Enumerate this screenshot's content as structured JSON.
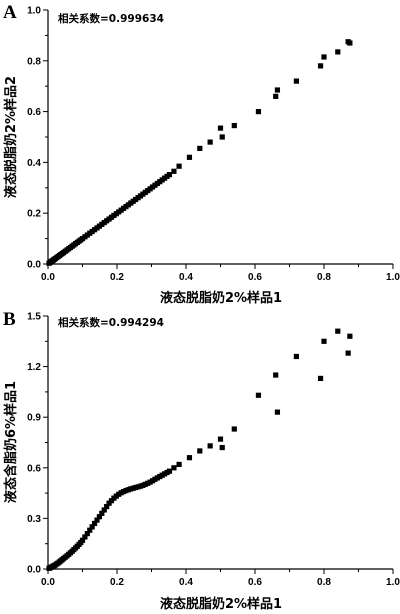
{
  "chart_data": [
    {
      "type": "scatter",
      "panel": "A",
      "annotation": "相关系数=0.999634",
      "xlabel": "液态脱脂奶2%样品1",
      "ylabel": "液态脱脂奶2%样品2",
      "xlim": [
        0,
        1.0
      ],
      "ylim": [
        0,
        1.0
      ],
      "xticks": [
        "0.0",
        "0.2",
        "0.4",
        "0.6",
        "0.8",
        "1.0"
      ],
      "yticks": [
        "0.0",
        "0.2",
        "0.4",
        "0.6",
        "0.8",
        "1.0"
      ],
      "series": [
        {
          "x": [
            0.003,
            0.006,
            0.009,
            0.012,
            0.015,
            0.018,
            0.021,
            0.025,
            0.029,
            0.033,
            0.037,
            0.041,
            0.045,
            0.05,
            0.055,
            0.06,
            0.065,
            0.07,
            0.075,
            0.08,
            0.085,
            0.09,
            0.095,
            0.1,
            0.107,
            0.114,
            0.121,
            0.128,
            0.135,
            0.142,
            0.149,
            0.156,
            0.163,
            0.17,
            0.177,
            0.184,
            0.191,
            0.198,
            0.205,
            0.212,
            0.219,
            0.226,
            0.233,
            0.24,
            0.247,
            0.254,
            0.261,
            0.268,
            0.275,
            0.282,
            0.289,
            0.296,
            0.303,
            0.31,
            0.317,
            0.324,
            0.331,
            0.338,
            0.345,
            0.352,
            0.365,
            0.38,
            0.41,
            0.44,
            0.47,
            0.5,
            0.505,
            0.54,
            0.61,
            0.66,
            0.665,
            0.72,
            0.79,
            0.8,
            0.84,
            0.87,
            0.875
          ],
          "y": [
            0.003,
            0.006,
            0.009,
            0.012,
            0.015,
            0.018,
            0.021,
            0.025,
            0.029,
            0.033,
            0.037,
            0.041,
            0.045,
            0.05,
            0.055,
            0.06,
            0.065,
            0.07,
            0.075,
            0.08,
            0.085,
            0.09,
            0.095,
            0.1,
            0.107,
            0.114,
            0.121,
            0.128,
            0.135,
            0.142,
            0.149,
            0.156,
            0.163,
            0.17,
            0.177,
            0.184,
            0.191,
            0.198,
            0.205,
            0.212,
            0.219,
            0.226,
            0.233,
            0.24,
            0.247,
            0.254,
            0.261,
            0.268,
            0.275,
            0.282,
            0.289,
            0.296,
            0.303,
            0.31,
            0.317,
            0.324,
            0.331,
            0.338,
            0.345,
            0.352,
            0.365,
            0.385,
            0.42,
            0.455,
            0.48,
            0.535,
            0.5,
            0.545,
            0.6,
            0.66,
            0.685,
            0.72,
            0.78,
            0.815,
            0.835,
            0.875,
            0.87
          ]
        }
      ]
    },
    {
      "type": "scatter",
      "panel": "B",
      "annotation": "相关系数=0.994294",
      "xlabel": "液态脱脂奶2%样品1",
      "ylabel": "液态含脂奶6%样品1",
      "xlim": [
        0,
        1.0
      ],
      "ylim": [
        0,
        1.5
      ],
      "xticks": [
        "0.0",
        "0.2",
        "0.4",
        "0.6",
        "0.8",
        "1.0"
      ],
      "yticks": [
        "0.0",
        "0.3",
        "0.6",
        "0.9",
        "1.2",
        "1.5"
      ],
      "series": [
        {
          "x": [
            0.003,
            0.006,
            0.009,
            0.012,
            0.015,
            0.018,
            0.021,
            0.025,
            0.029,
            0.033,
            0.037,
            0.041,
            0.045,
            0.05,
            0.055,
            0.06,
            0.065,
            0.07,
            0.075,
            0.08,
            0.085,
            0.09,
            0.095,
            0.1,
            0.107,
            0.114,
            0.121,
            0.128,
            0.135,
            0.142,
            0.149,
            0.156,
            0.163,
            0.17,
            0.177,
            0.184,
            0.191,
            0.198,
            0.205,
            0.212,
            0.219,
            0.226,
            0.233,
            0.24,
            0.247,
            0.254,
            0.261,
            0.268,
            0.275,
            0.282,
            0.289,
            0.296,
            0.303,
            0.31,
            0.317,
            0.324,
            0.331,
            0.338,
            0.345,
            0.352,
            0.365,
            0.38,
            0.41,
            0.44,
            0.47,
            0.5,
            0.505,
            0.54,
            0.61,
            0.66,
            0.665,
            0.72,
            0.79,
            0.8,
            0.84,
            0.87,
            0.875
          ],
          "y": [
            0.004,
            0.007,
            0.01,
            0.013,
            0.017,
            0.02,
            0.024,
            0.03,
            0.035,
            0.042,
            0.048,
            0.055,
            0.062,
            0.07,
            0.078,
            0.087,
            0.096,
            0.105,
            0.115,
            0.125,
            0.135,
            0.146,
            0.157,
            0.17,
            0.19,
            0.21,
            0.23,
            0.25,
            0.27,
            0.29,
            0.31,
            0.33,
            0.35,
            0.37,
            0.39,
            0.405,
            0.42,
            0.432,
            0.443,
            0.452,
            0.459,
            0.465,
            0.47,
            0.475,
            0.479,
            0.483,
            0.487,
            0.491,
            0.496,
            0.502,
            0.508,
            0.515,
            0.523,
            0.532,
            0.54,
            0.548,
            0.556,
            0.564,
            0.572,
            0.58,
            0.6,
            0.62,
            0.66,
            0.7,
            0.73,
            0.77,
            0.72,
            0.83,
            1.03,
            1.15,
            0.93,
            1.26,
            1.13,
            1.35,
            1.41,
            1.28,
            1.38
          ]
        }
      ]
    }
  ]
}
